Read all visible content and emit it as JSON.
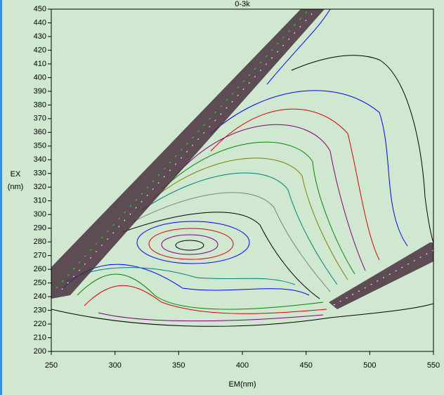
{
  "chart_data": {
    "type": "contour",
    "title": "0-3k",
    "xlabel": "EM(nm)",
    "ylabel": [
      "EX",
      "(nm)"
    ],
    "xlim": [
      250,
      550
    ],
    "xticks": [
      250,
      300,
      350,
      400,
      450,
      500,
      550
    ],
    "ylim": [
      200,
      450
    ],
    "yticks": [
      200,
      210,
      220,
      230,
      240,
      250,
      260,
      270,
      280,
      290,
      300,
      310,
      320,
      330,
      340,
      350,
      360,
      370,
      380,
      390,
      400,
      410,
      420,
      430,
      440,
      450
    ],
    "background": "#cfe8cf"
  }
}
